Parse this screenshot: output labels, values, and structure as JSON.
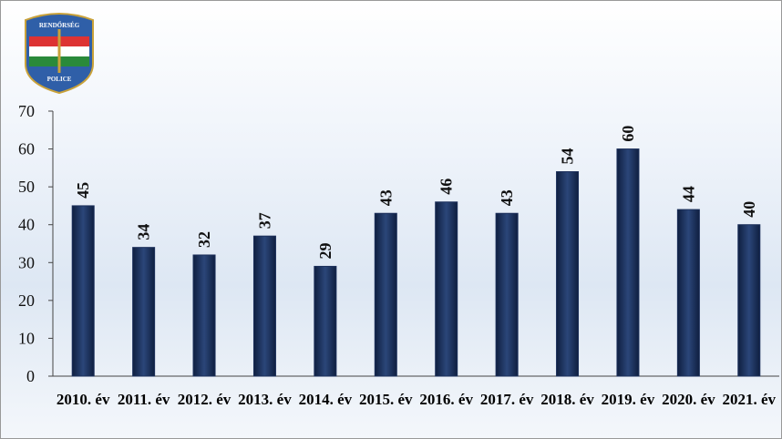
{
  "logo": {
    "top": "RENDŐRSÉG",
    "bottom": "POLICE"
  },
  "chart_data": {
    "type": "bar",
    "categories": [
      "2010. év",
      "2011. év",
      "2012. év",
      "2013. év",
      "2014. év",
      "2015. év",
      "2016. év",
      "2017. év",
      "2018. év",
      "2019. év",
      "2020. év",
      "2021. év"
    ],
    "values": [
      45,
      34,
      32,
      37,
      29,
      43,
      46,
      43,
      54,
      60,
      44,
      40
    ],
    "color": "#1b2f5a",
    "ylim": [
      0,
      70
    ],
    "yticks": [
      0,
      10,
      20,
      30,
      40,
      50,
      60,
      70
    ],
    "grid": false
  }
}
